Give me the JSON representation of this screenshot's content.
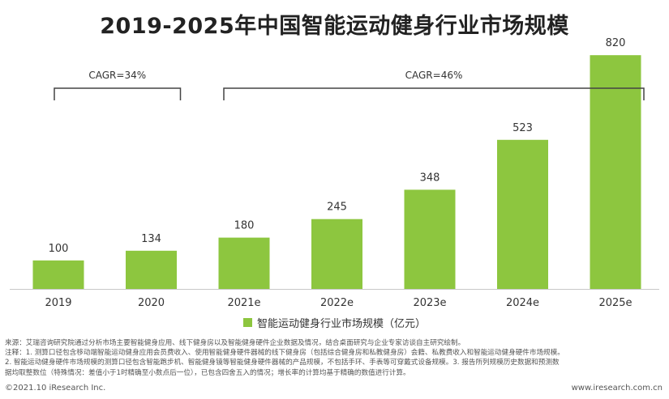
{
  "chart_data": {
    "type": "bar",
    "title": "2019-2025年中国智能运动健身行业市场规模",
    "categories": [
      "2019",
      "2020",
      "2021e",
      "2022e",
      "2023e",
      "2024e",
      "2025e"
    ],
    "series": [
      {
        "name": "智能运动健身行业市场规模（亿元）",
        "values": [
          100,
          134,
          180,
          245,
          348,
          523,
          820
        ]
      }
    ],
    "ylim": [
      0,
      900
    ],
    "grid": false,
    "legend": "bottom",
    "annotations": [
      {
        "text": "CAGR=34%",
        "from": "2019",
        "to": "2020"
      },
      {
        "text": "CAGR=46%",
        "from": "2021e",
        "to": "2025e"
      }
    ]
  },
  "colors": {
    "bar": "#8dc63f",
    "axis": "#c8c8c8",
    "bracket": "#444444"
  },
  "footnotes": [
    "来源：艾瑞咨询研究院通过分析市场主要智能健身应用、线下健身房以及智能健身硬件企业数据及情况，结合桌面研究与企业专家访谈自主研究绘制。",
    "注释：1. 测算口径包含移动端智能运动健身应用会员费收入、使用智能健身硬件器械的线下健身房（包括综合健身房和私教健身房）会籍、私教费收入和智能运动健身硬件市场规模。",
    "2. 智能运动健身硬件市场规模的测算口径包含智能跑步机、智能健身镜等智能健身硬件器械的产品规模，不包括手环、手表等可穿戴式设备规模。3. 报告所列规模历史数据和预测数",
    "据均取整数位（特殊情况：差值小于1时精确至小数点后一位），已包含四舍五入的情况；增长率的计算均基于精确的数值进行计算。"
  ],
  "copyright": "©2021.10 iResearch Inc.",
  "website": "www.iresearch.com.cn"
}
